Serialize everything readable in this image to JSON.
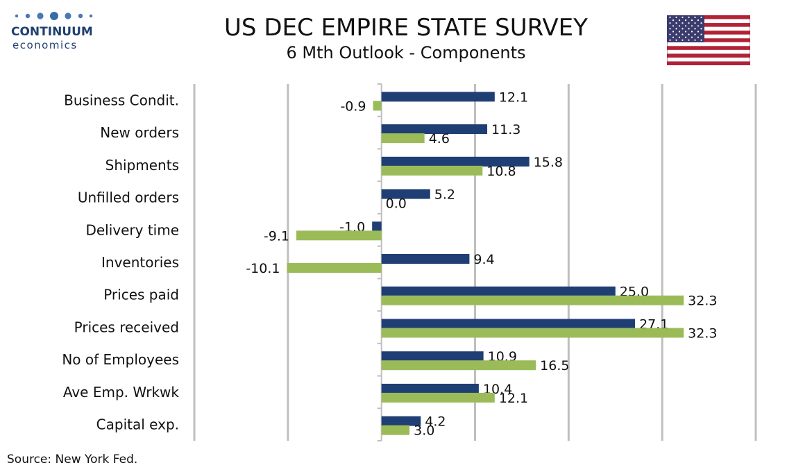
{
  "header": {
    "logo_name": "CONTINUUM",
    "logo_sub": "economics",
    "title": "US DEC EMPIRE STATE SURVEY",
    "subtitle": "6 Mth Outlook - Components"
  },
  "footer": {
    "source": "Source: New York Fed."
  },
  "colors": {
    "series1": "#1f3f74",
    "series2": "#9bbb59",
    "grid": "#bfbfbf",
    "logo": "#1f3f6f",
    "flag_red": "#b22234",
    "flag_blue": "#3c3b6e"
  },
  "chart_data": {
    "type": "bar",
    "orientation": "horizontal",
    "categories": [
      "Business Condit.",
      "New orders ",
      "Shipments ",
      "Unfilled orders",
      "Delivery time",
      "Inventories",
      "Prices paid",
      "Prices received",
      "No of Employees",
      "Ave Emp. Wrkwk",
      "Capital exp."
    ],
    "series": [
      {
        "values": [
          12.1,
          11.3,
          15.8,
          5.2,
          -1.0,
          9.4,
          25.0,
          27.1,
          10.9,
          10.4,
          4.2
        ]
      },
      {
        "values": [
          -0.9,
          4.6,
          10.8,
          0.0,
          -9.1,
          -10.1,
          32.3,
          32.3,
          16.5,
          12.1,
          3.0
        ]
      }
    ],
    "xlim": [
      -20,
      40
    ],
    "grid": true,
    "legend": "none"
  }
}
